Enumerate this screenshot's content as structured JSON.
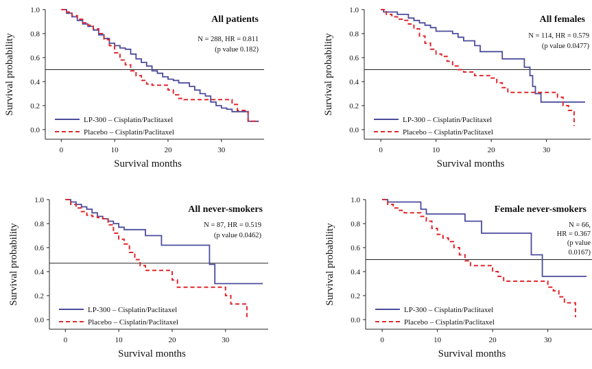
{
  "chart_data": [
    {
      "type": "line",
      "title": "All patients",
      "stats": [
        "N = 288, HR = 0.811",
        "(p value 0.182)"
      ],
      "xlabel": "Survival months",
      "ylabel": "Survival probability",
      "xlim": [
        -3,
        38
      ],
      "ylim": [
        0,
        1.0
      ],
      "xticks": [
        "0",
        "10",
        "20",
        "30"
      ],
      "yticks": [
        "0.0",
        "0.2",
        "0.4",
        "0.6",
        "0.8",
        "1.0"
      ],
      "reference_line": 0.5,
      "series": [
        {
          "name": "LP-300 – Cisplatin/Paclitaxel",
          "color": "#4b4b9c",
          "dash": "solid",
          "x": [
            0,
            1,
            2,
            3,
            4,
            5,
            6,
            7,
            8,
            9,
            10,
            11,
            12,
            13,
            14,
            15,
            16,
            17,
            18,
            19,
            20,
            21,
            22,
            23,
            24,
            25,
            26,
            27,
            28,
            29,
            30,
            31,
            32,
            33,
            34,
            35,
            36,
            37
          ],
          "y": [
            1.0,
            0.97,
            0.94,
            0.91,
            0.88,
            0.86,
            0.83,
            0.79,
            0.76,
            0.72,
            0.7,
            0.68,
            0.67,
            0.63,
            0.59,
            0.56,
            0.53,
            0.49,
            0.47,
            0.44,
            0.42,
            0.41,
            0.39,
            0.39,
            0.36,
            0.33,
            0.3,
            0.28,
            0.23,
            0.2,
            0.18,
            0.17,
            0.15,
            0.15,
            0.15,
            0.07,
            0.07,
            0.07
          ]
        },
        {
          "name": "Placebo – Cisplatin/Paclitaxel",
          "color": "#e0262c",
          "dash": "dashed",
          "x": [
            0,
            1,
            2,
            3,
            4,
            5,
            6,
            7,
            8,
            9,
            10,
            11,
            12,
            13,
            14,
            15,
            16,
            17,
            18,
            19,
            20,
            21,
            22,
            23,
            24,
            25,
            26,
            27,
            28,
            29,
            30,
            31,
            32,
            33,
            34,
            35,
            36,
            37
          ],
          "y": [
            1.0,
            0.98,
            0.95,
            0.92,
            0.89,
            0.87,
            0.84,
            0.8,
            0.75,
            0.7,
            0.64,
            0.58,
            0.54,
            0.49,
            0.45,
            0.41,
            0.38,
            0.37,
            0.37,
            0.37,
            0.33,
            0.29,
            0.26,
            0.25,
            0.25,
            0.25,
            0.25,
            0.25,
            0.25,
            0.25,
            0.25,
            0.25,
            0.21,
            0.16,
            0.16,
            0.07,
            0.07,
            0.07
          ]
        }
      ]
    },
    {
      "type": "line",
      "title": "All females",
      "stats": [
        "N = 114, HR = 0.579",
        "(p value 0.0477)"
      ],
      "xlabel": "Survival months",
      "ylabel": "Survival probability",
      "xlim": [
        -3,
        38
      ],
      "ylim": [
        0,
        1.0
      ],
      "xticks": [
        "0",
        "10",
        "20",
        "30"
      ],
      "yticks": [
        "0.0",
        "0.2",
        "0.4",
        "0.6",
        "0.8",
        "1.0"
      ],
      "reference_line": 0.5,
      "series": [
        {
          "name": "LP-300 – Cisplatin/Paclitaxel",
          "color": "#4b4b9c",
          "dash": "solid",
          "x": [
            0,
            0.5,
            3,
            5,
            6,
            7,
            8,
            9,
            10,
            12,
            13,
            14,
            15,
            16,
            17,
            18,
            20,
            22,
            24,
            26,
            27,
            27.5,
            28,
            29,
            30,
            31,
            32,
            33,
            34,
            35,
            36,
            37
          ],
          "y": [
            1.0,
            0.98,
            0.96,
            0.93,
            0.91,
            0.89,
            0.87,
            0.85,
            0.82,
            0.82,
            0.8,
            0.77,
            0.74,
            0.74,
            0.7,
            0.65,
            0.65,
            0.59,
            0.59,
            0.52,
            0.45,
            0.36,
            0.3,
            0.23,
            0.23,
            0.23,
            0.23,
            0.23,
            0.23,
            0.23,
            0.23,
            0.23
          ]
        },
        {
          "name": "Placebo – Cisplatin/Paclitaxel",
          "color": "#e0262c",
          "dash": "dashed",
          "x": [
            0,
            1,
            2,
            3,
            4,
            5,
            6,
            7,
            8,
            9,
            10,
            11,
            12,
            13,
            14,
            15,
            17,
            19,
            20,
            21,
            22,
            23,
            25,
            27,
            29,
            31,
            32,
            33,
            34,
            35
          ],
          "y": [
            1.0,
            0.96,
            0.94,
            0.92,
            0.91,
            0.88,
            0.84,
            0.78,
            0.72,
            0.67,
            0.63,
            0.61,
            0.57,
            0.53,
            0.5,
            0.48,
            0.45,
            0.45,
            0.43,
            0.39,
            0.35,
            0.31,
            0.31,
            0.31,
            0.31,
            0.31,
            0.27,
            0.2,
            0.16,
            0.03
          ]
        }
      ]
    },
    {
      "type": "line",
      "title": "All never-smokers",
      "stats": [
        "N = 87, HR = 0.519",
        "(p value 0.0462)"
      ],
      "xlabel": "Survival months",
      "ylabel": "Survival probability",
      "xlim": [
        -3,
        38
      ],
      "ylim": [
        0,
        1.0
      ],
      "xticks": [
        "0",
        "10",
        "20",
        "30"
      ],
      "yticks": [
        "0.0",
        "0.2",
        "0.4",
        "0.6",
        "0.8",
        "1.0"
      ],
      "reference_line": 0.47,
      "series": [
        {
          "name": "LP-300 – Cisplatin/Paclitaxel",
          "color": "#4b4b9c",
          "dash": "solid",
          "x": [
            0,
            1,
            2,
            3,
            4,
            5,
            6,
            7,
            8,
            9,
            10,
            11,
            12,
            13,
            14,
            15,
            16,
            17,
            18,
            20,
            22,
            24,
            26,
            27,
            28,
            29,
            30,
            31,
            32,
            33,
            34,
            35,
            36,
            37
          ],
          "y": [
            1.0,
            0.98,
            0.96,
            0.94,
            0.92,
            0.89,
            0.86,
            0.84,
            0.82,
            0.8,
            0.77,
            0.75,
            0.75,
            0.75,
            0.75,
            0.7,
            0.7,
            0.7,
            0.62,
            0.62,
            0.62,
            0.62,
            0.62,
            0.46,
            0.3,
            0.3,
            0.3,
            0.3,
            0.3,
            0.3,
            0.3,
            0.3,
            0.3,
            0.3
          ]
        },
        {
          "name": "Placebo – Cisplatin/Paclitaxel",
          "color": "#e0262c",
          "dash": "dashed",
          "x": [
            0,
            1,
            2,
            3,
            4,
            5,
            6,
            7,
            8,
            9,
            10,
            11,
            12,
            13,
            14,
            15,
            16,
            17,
            18,
            19,
            20,
            21,
            22,
            23,
            24,
            25,
            26,
            27,
            28,
            29,
            30,
            31,
            32,
            33,
            34
          ],
          "y": [
            1.0,
            0.96,
            0.93,
            0.9,
            0.87,
            0.86,
            0.85,
            0.84,
            0.79,
            0.72,
            0.67,
            0.63,
            0.56,
            0.5,
            0.45,
            0.41,
            0.41,
            0.41,
            0.41,
            0.41,
            0.33,
            0.27,
            0.27,
            0.27,
            0.27,
            0.27,
            0.27,
            0.27,
            0.27,
            0.27,
            0.2,
            0.13,
            0.13,
            0.13,
            0.01
          ]
        }
      ]
    },
    {
      "type": "line",
      "title": "Female never-smokers",
      "stats": [
        "N = 66,",
        "HR = 0.367",
        "(p value",
        "0.0167)"
      ],
      "xlabel": "Survival months",
      "ylabel": "Survival probability",
      "xlim": [
        -3,
        38
      ],
      "ylim": [
        0,
        1.0
      ],
      "xticks": [
        "0",
        "10",
        "20",
        "30"
      ],
      "yticks": [
        "0.0",
        "0.2",
        "0.4",
        "0.6",
        "0.8",
        "1.0"
      ],
      "reference_line": 0.5,
      "series": [
        {
          "name": "LP-300 – Cisplatin/Paclitaxel",
          "color": "#4b4b9c",
          "dash": "solid",
          "x": [
            0,
            1,
            2,
            4,
            6,
            7,
            8,
            9,
            10,
            12,
            14,
            15,
            16,
            17,
            18,
            20,
            22,
            24,
            26,
            27,
            28,
            29,
            30,
            31,
            32,
            33,
            34,
            35,
            36,
            37
          ],
          "y": [
            1.0,
            0.98,
            0.98,
            0.98,
            0.98,
            0.92,
            0.88,
            0.88,
            0.88,
            0.88,
            0.88,
            0.82,
            0.82,
            0.82,
            0.72,
            0.72,
            0.72,
            0.72,
            0.72,
            0.54,
            0.54,
            0.36,
            0.36,
            0.36,
            0.36,
            0.36,
            0.36,
            0.36,
            0.36,
            0.36
          ]
        },
        {
          "name": "Placebo – Cisplatin/Paclitaxel",
          "color": "#e0262c",
          "dash": "dashed",
          "x": [
            0,
            1,
            2,
            3,
            4,
            5,
            6,
            7,
            8,
            9,
            10,
            11,
            12,
            13,
            14,
            15,
            16,
            17,
            18,
            19,
            20,
            21,
            22,
            23,
            24,
            25,
            26,
            27,
            28,
            29,
            30,
            31,
            32,
            33,
            34,
            35
          ],
          "y": [
            1.0,
            0.96,
            0.93,
            0.91,
            0.89,
            0.89,
            0.89,
            0.86,
            0.82,
            0.76,
            0.71,
            0.68,
            0.65,
            0.6,
            0.54,
            0.49,
            0.45,
            0.45,
            0.45,
            0.45,
            0.4,
            0.36,
            0.32,
            0.32,
            0.32,
            0.32,
            0.32,
            0.32,
            0.32,
            0.32,
            0.27,
            0.24,
            0.19,
            0.14,
            0.14,
            0.02
          ]
        }
      ]
    }
  ]
}
